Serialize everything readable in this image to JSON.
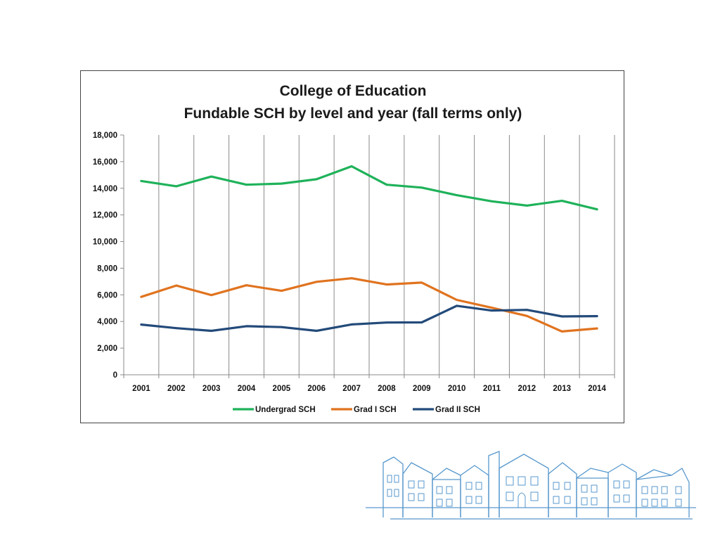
{
  "chart_data": {
    "type": "line",
    "title": "College of Education",
    "subtitle": "Fundable SCH by level and year (fall terms only)",
    "xlabel": "",
    "ylabel": "",
    "categories": [
      "2001",
      "2002",
      "2003",
      "2004",
      "2005",
      "2006",
      "2007",
      "2008",
      "2009",
      "2010",
      "2011",
      "2012",
      "2013",
      "2014"
    ],
    "ylim": [
      0,
      18000
    ],
    "yticks": [
      0,
      2000,
      4000,
      6000,
      8000,
      10000,
      12000,
      14000,
      16000,
      18000
    ],
    "ytick_labels": [
      "0",
      "2,000",
      "4,000",
      "6,000",
      "8,000",
      "10,000",
      "12,000",
      "14,000",
      "16,000",
      "18,000"
    ],
    "grid": "vertical",
    "legend_position": "bottom",
    "series": [
      {
        "name": "Undergrad SCH",
        "color": "#1fb25a",
        "values": [
          14550,
          14150,
          14880,
          14270,
          14350,
          14680,
          15650,
          14270,
          14050,
          13480,
          13020,
          12700,
          13060,
          12420
        ]
      },
      {
        "name": "Grad I SCH",
        "color": "#e0731f",
        "values": [
          5850,
          6700,
          5980,
          6720,
          6300,
          6980,
          7250,
          6780,
          6920,
          5620,
          5030,
          4420,
          3250,
          3480
        ]
      },
      {
        "name": "Grad II SCH",
        "color": "#234a7a",
        "values": [
          3770,
          3500,
          3300,
          3650,
          3580,
          3300,
          3780,
          3920,
          3930,
          5180,
          4820,
          4870,
          4380,
          4400
        ]
      }
    ]
  },
  "decoration": {
    "building_icon": "university-building-sketch",
    "building_color": "#3a86c4"
  }
}
